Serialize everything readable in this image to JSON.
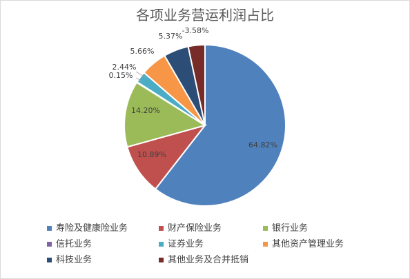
{
  "colors": [
    "#4f81bd",
    "#c0504d",
    "#9bbb59",
    "#8064a2",
    "#4bacc6",
    "#f79646",
    "#2c4d75",
    "#772c2a"
  ],
  "chart_data": {
    "type": "pie",
    "title": "各项业务营运利润占比",
    "categories": [
      "寿险及健康险业务",
      "财产保险业务",
      "银行业务",
      "信托业务",
      "证券业务",
      "其他资产管理业务",
      "科技业务",
      "其他业务及合并抵销"
    ],
    "values": [
      64.82,
      10.89,
      14.2,
      0.15,
      2.44,
      5.66,
      5.37,
      -3.58
    ],
    "data_labels": [
      "64.82%",
      "10.89%",
      "14.20%",
      "0.15%",
      "2.44%",
      "5.66%",
      "5.37%",
      "-3.58%"
    ],
    "legend_position": "bottom"
  }
}
